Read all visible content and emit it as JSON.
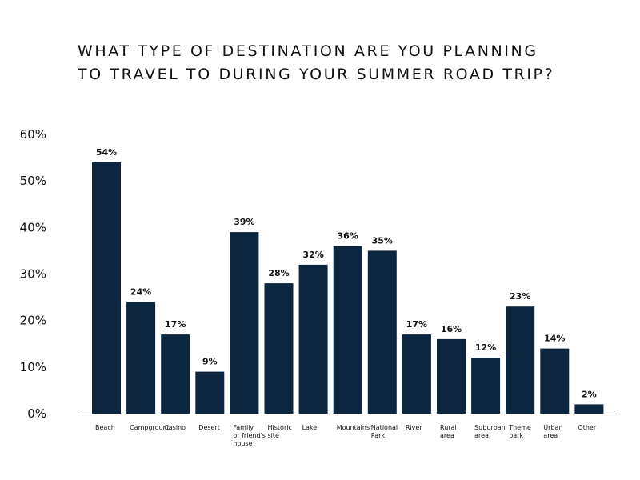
{
  "chart_data": {
    "type": "bar",
    "title_lines": [
      "WHAT TYPE OF DESTINATION ARE YOU PLANNING",
      "TO TRAVEL TO DURING YOUR SUMMER ROAD TRIP?"
    ],
    "categories": [
      [
        "Beach"
      ],
      [
        "Campground"
      ],
      [
        "Casino"
      ],
      [
        "Desert"
      ],
      [
        "Family",
        "or friend's",
        "house"
      ],
      [
        "Historic",
        "site"
      ],
      [
        "Lake"
      ],
      [
        "Mountains"
      ],
      [
        "National",
        "Park"
      ],
      [
        "River"
      ],
      [
        "Rural",
        "area"
      ],
      [
        "Suburban",
        "area"
      ],
      [
        "Theme",
        "park"
      ],
      [
        "Urban",
        "area"
      ],
      [
        "Other"
      ]
    ],
    "values": [
      54,
      24,
      17,
      9,
      39,
      28,
      32,
      36,
      35,
      17,
      16,
      12,
      23,
      14,
      2
    ],
    "value_labels": [
      "54%",
      "24%",
      "17%",
      "9%",
      "39%",
      "28%",
      "32%",
      "36%",
      "35%",
      "17%",
      "16%",
      "12%",
      "23%",
      "14%",
      "2%"
    ],
    "yticks": [
      0,
      10,
      20,
      30,
      40,
      50,
      60
    ],
    "ytick_labels": [
      "0%",
      "10%",
      "20%",
      "30%",
      "40%",
      "50%",
      "60%"
    ],
    "ylim": [
      0,
      60
    ],
    "xlabel": "",
    "ylabel": "",
    "grid": false,
    "legend": "none",
    "bar_color": "#0c2640"
  }
}
